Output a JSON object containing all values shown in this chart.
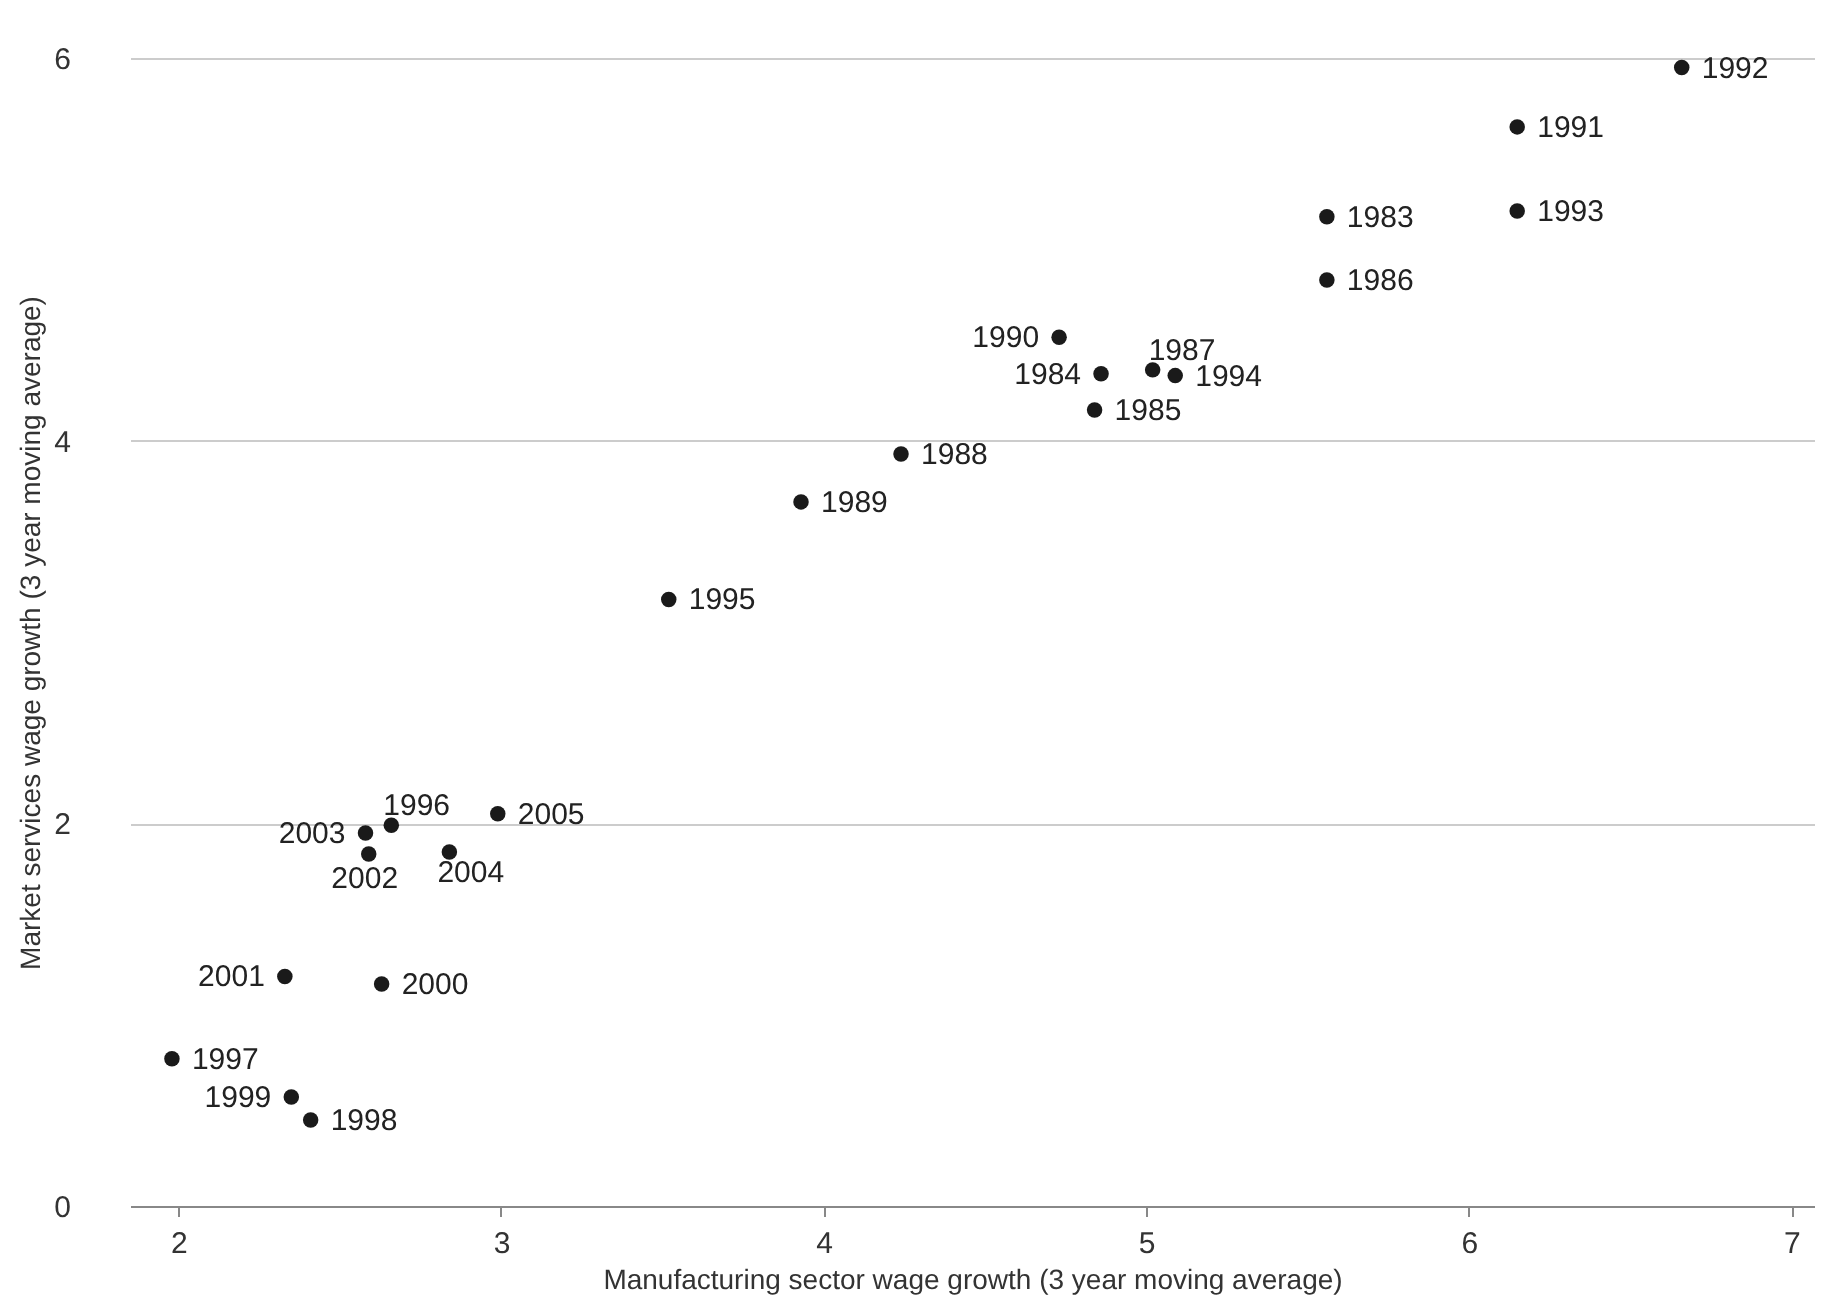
{
  "chart_data": {
    "type": "scatter",
    "xlabel": "Manufacturing sector wage growth (3 year moving average)",
    "ylabel": "Market services wage growth (3 year moving average)",
    "x": [
      6.66,
      6.15,
      6.15,
      5.56,
      5.56,
      4.73,
      5.02,
      4.86,
      5.09,
      4.84,
      4.24,
      3.93,
      3.52,
      2.66,
      2.58,
      2.59,
      2.99,
      2.84,
      2.33,
      2.63,
      1.98,
      2.35,
      2.41
    ],
    "series": [
      {
        "color": "#1a1a1a",
        "values": [
          5.95,
          5.64,
          5.2,
          5.17,
          4.84,
          4.54,
          4.37,
          4.35,
          4.34,
          4.16,
          3.93,
          3.68,
          3.17,
          1.99,
          1.95,
          1.84,
          2.05,
          1.85,
          1.2,
          1.16,
          0.77,
          0.57,
          0.45
        ]
      }
    ],
    "annotations": [
      {
        "text": "1992",
        "x": 6.66,
        "y": 5.95
      },
      {
        "text": "1991",
        "x": 6.15,
        "y": 5.64
      },
      {
        "text": "1993",
        "x": 6.15,
        "y": 5.2
      },
      {
        "text": "1983",
        "x": 5.56,
        "y": 5.17
      },
      {
        "text": "1986",
        "x": 5.56,
        "y": 4.84
      },
      {
        "text": "1990",
        "x": 4.73,
        "y": 4.54
      },
      {
        "text": "1987",
        "x": 5.02,
        "y": 4.37
      },
      {
        "text": "1984",
        "x": 4.86,
        "y": 4.35
      },
      {
        "text": "1994",
        "x": 5.09,
        "y": 4.34
      },
      {
        "text": "1985",
        "x": 4.84,
        "y": 4.16
      },
      {
        "text": "1988",
        "x": 4.24,
        "y": 3.93
      },
      {
        "text": "1989",
        "x": 3.93,
        "y": 3.68
      },
      {
        "text": "1995",
        "x": 3.52,
        "y": 3.17
      },
      {
        "text": "1996",
        "x": 2.66,
        "y": 1.99
      },
      {
        "text": "2003",
        "x": 2.58,
        "y": 1.95
      },
      {
        "text": "2002",
        "x": 2.59,
        "y": 1.84
      },
      {
        "text": "2005",
        "x": 2.99,
        "y": 2.05
      },
      {
        "text": "2004",
        "x": 2.84,
        "y": 1.85
      },
      {
        "text": "2001",
        "x": 2.33,
        "y": 1.2
      },
      {
        "text": "2000",
        "x": 2.63,
        "y": 1.16
      },
      {
        "text": "1997",
        "x": 1.98,
        "y": 0.77
      },
      {
        "text": "1999",
        "x": 2.35,
        "y": 0.57
      },
      {
        "text": "1998",
        "x": 2.41,
        "y": 0.45
      }
    ],
    "xlim": [
      1.85,
      7.07
    ],
    "ylim": [
      0,
      6
    ],
    "xticks": [
      2,
      3,
      4,
      5,
      6,
      7
    ],
    "yticks": [
      0,
      2,
      4,
      6
    ],
    "grid": "y",
    "marker": "circle"
  }
}
